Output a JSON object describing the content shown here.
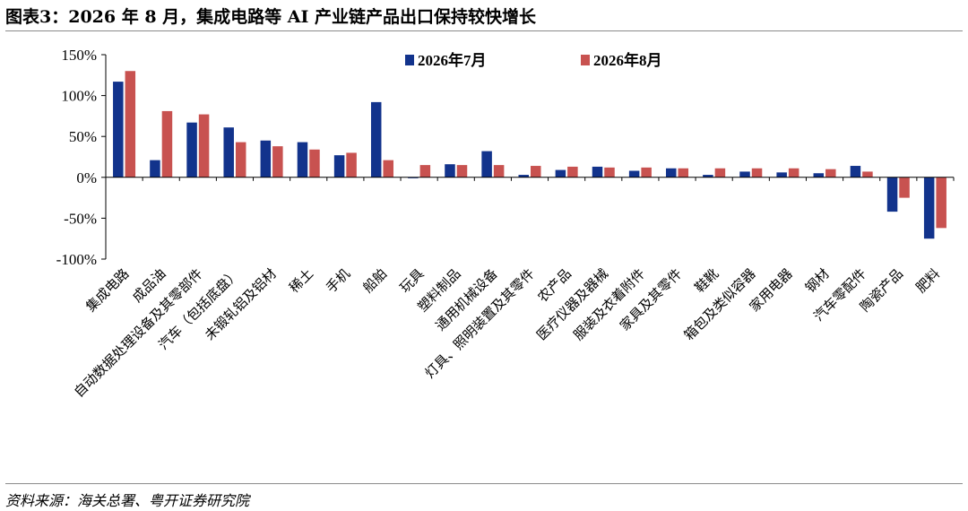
{
  "title": "图表3：2026 年 8 月，集成电路等 AI 产业链产品出口保持较快增长",
  "source": "资料来源：海关总署、粤开证券研究院",
  "chart_data": {
    "type": "bar",
    "title": "",
    "xlabel": "",
    "ylabel": "",
    "ylim": [
      -100,
      150
    ],
    "yticks": [
      -100,
      -50,
      0,
      50,
      100,
      150
    ],
    "ytick_labels": [
      "-100%",
      "-50%",
      "0%",
      "50%",
      "100%",
      "150%"
    ],
    "legend_position": "top-center",
    "categories": [
      "集成电路",
      "成品油",
      "自动数据处理设备及其零部件",
      "汽车（包括底盘）",
      "未锻轧铝及铝材",
      "稀土",
      "手机",
      "船舶",
      "玩具",
      "塑料制品",
      "通用机械设备",
      "灯具、照明装置及其零件",
      "农产品",
      "医疗仪器及器械",
      "服装及衣着附件",
      "家具及其零件",
      "鞋靴",
      "箱包及类似容器",
      "家用电器",
      "钢材",
      "汽车零配件",
      "陶瓷产品",
      "肥料"
    ],
    "series": [
      {
        "name": "2026年7月",
        "color": "#12338C",
        "values": [
          117,
          21,
          67,
          61,
          45,
          43,
          27,
          92,
          -1,
          16,
          32,
          3,
          9,
          13,
          8,
          11,
          3,
          7,
          6,
          5,
          14,
          -42,
          -75
        ]
      },
      {
        "name": "2026年8月",
        "color": "#C85250",
        "values": [
          130,
          81,
          77,
          43,
          38,
          34,
          30,
          21,
          15,
          15,
          15,
          14,
          13,
          12,
          12,
          11,
          11,
          11,
          11,
          10,
          7,
          -25,
          -62
        ]
      }
    ]
  }
}
